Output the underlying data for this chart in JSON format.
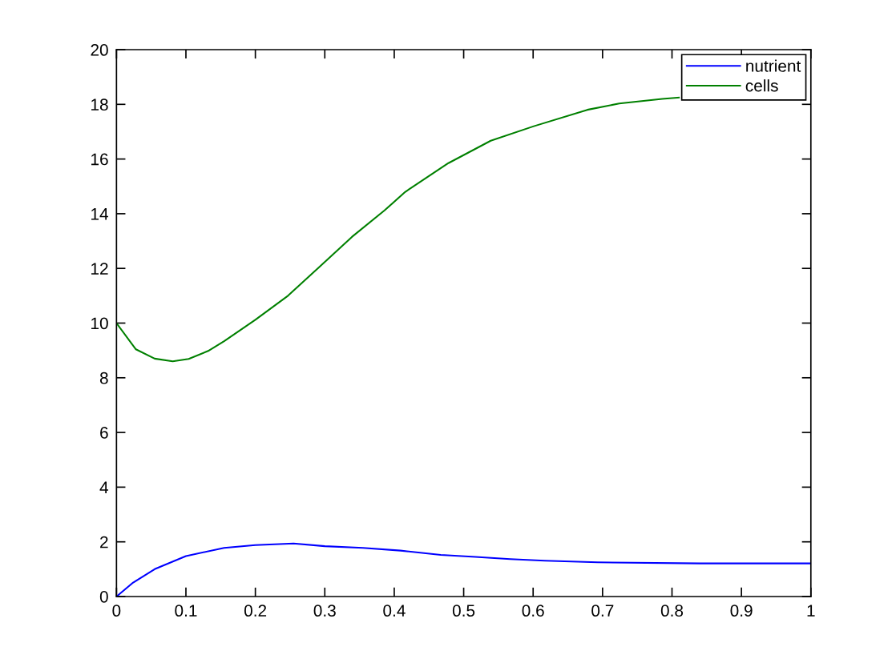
{
  "chart_data": {
    "type": "line",
    "series": [
      {
        "name": "nutrient",
        "color": "#0000ff",
        "x": [
          0,
          0.024,
          0.055,
          0.1,
          0.155,
          0.2,
          0.255,
          0.3,
          0.355,
          0.409,
          0.467,
          0.517,
          0.567,
          0.617,
          0.693,
          0.84,
          1.0
        ],
        "values": [
          0,
          0.51,
          1.0,
          1.48,
          1.78,
          1.88,
          1.94,
          1.84,
          1.78,
          1.68,
          1.52,
          1.45,
          1.37,
          1.31,
          1.25,
          1.21,
          1.21
        ]
      },
      {
        "name": "cells",
        "color": "#008000",
        "x": [
          0,
          0.028,
          0.055,
          0.081,
          0.104,
          0.132,
          0.155,
          0.2,
          0.247,
          0.293,
          0.339,
          0.386,
          0.416,
          0.478,
          0.539,
          0.601,
          0.678,
          0.724,
          0.786,
          0.81
        ],
        "values": [
          10.0,
          9.04,
          8.7,
          8.6,
          8.69,
          8.98,
          9.34,
          10.12,
          11.0,
          12.07,
          13.15,
          14.12,
          14.8,
          15.85,
          16.67,
          17.2,
          17.8,
          18.03,
          18.2,
          18.25
        ]
      }
    ],
    "xlim": [
      0,
      1
    ],
    "ylim": [
      0,
      20
    ],
    "xticks": [
      0,
      0.1,
      0.2,
      0.3,
      0.4,
      0.5,
      0.6,
      0.7,
      0.8,
      0.9,
      1
    ],
    "yticks": [
      0,
      2,
      4,
      6,
      8,
      10,
      12,
      14,
      16,
      18,
      20
    ],
    "grid": false,
    "legend": "top right"
  }
}
